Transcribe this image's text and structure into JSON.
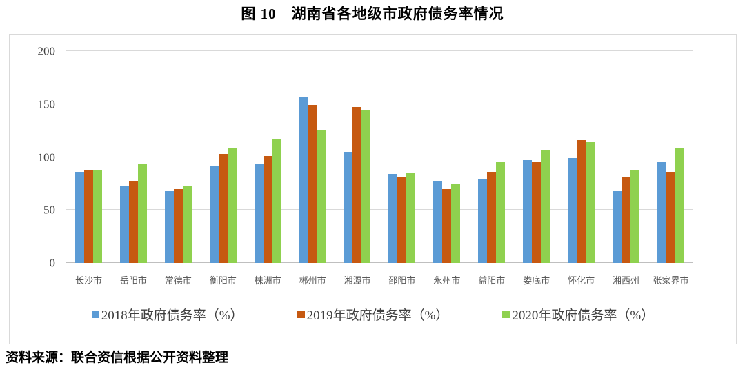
{
  "title": "图 10　湖南省各地级市政府债务率情况",
  "source_note": "资料来源：联合资信根据公开资料整理",
  "colors": {
    "series_2018": "#5B9BD5",
    "series_2019": "#C65911",
    "series_2020": "#8FD14F",
    "gridline": "#D9D9D9",
    "frame_border": "#D9D9D9",
    "axis_text": "#404040",
    "category_text": "#595959"
  },
  "chart_data": {
    "type": "bar",
    "title": "图 10　湖南省各地级市政府债务率情况",
    "xlabel": "",
    "ylabel": "",
    "ylim": [
      0,
      200
    ],
    "yticks": [
      0,
      50,
      100,
      150,
      200
    ],
    "grid": true,
    "legend_position": "bottom",
    "categories": [
      "长沙市",
      "岳阳市",
      "常德市",
      "衡阳市",
      "株洲市",
      "郴州市",
      "湘潭市",
      "邵阳市",
      "永州市",
      "益阳市",
      "娄底市",
      "怀化市",
      "湘西州",
      "张家界市"
    ],
    "series": [
      {
        "name": "2018年政府债务率（%）",
        "color": "#5B9BD5",
        "values": [
          86,
          72,
          68,
          91,
          93,
          157,
          104,
          84,
          77,
          79,
          97,
          99,
          68,
          95
        ]
      },
      {
        "name": "2019年政府债务率（%）",
        "color": "#C65911",
        "values": [
          88,
          77,
          70,
          103,
          101,
          149,
          147,
          81,
          70,
          86,
          95,
          116,
          81,
          86
        ]
      },
      {
        "name": "2020年政府债务率（%）",
        "color": "#8FD14F",
        "values": [
          88,
          94,
          73,
          108,
          117,
          125,
          144,
          85,
          74,
          95,
          107,
          114,
          88,
          109
        ]
      }
    ]
  }
}
